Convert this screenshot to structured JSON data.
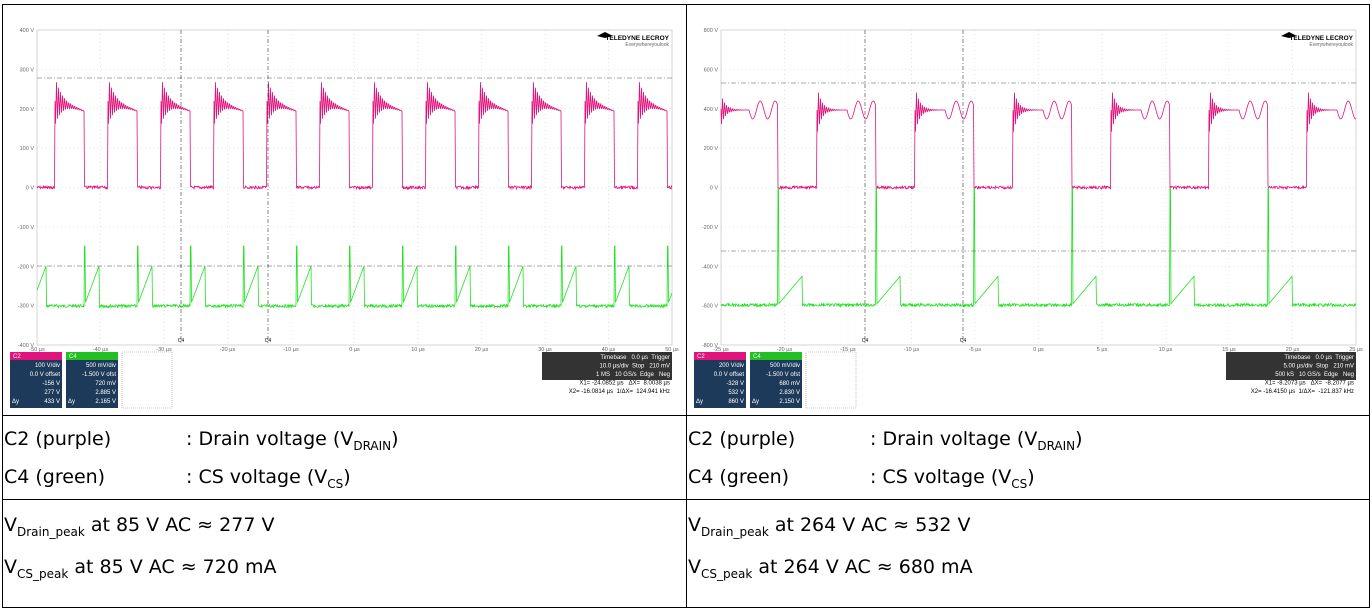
{
  "cells": [
    {
      "scope": {
        "brand": "TELEDYNE LECROY",
        "tagline": "Everywhereyoulook",
        "y_labels": [
          "400 V",
          "300 V",
          "200 V",
          "100 V",
          "0 V",
          "-100 V",
          "-200 V",
          "-300 V",
          "-400 V"
        ],
        "x_labels": [
          "-50 µs",
          "-40 µs",
          "-30 µs",
          "-20 µs",
          "-10 µs",
          "0 µs",
          "10 µs",
          "20 µs",
          "30 µs",
          "40 µs",
          "50 µs"
        ],
        "cursor_label": "C4",
        "ch2": {
          "name": "C2",
          "lines": [
            "100 V/div",
            "0.0 V offset",
            "-156 V",
            "277 V",
            "433 V"
          ]
        },
        "ch4": {
          "name": "C4",
          "lines": [
            "500 mV/div",
            "-1.500 V ofst",
            "720 mV",
            "2.885 V",
            "2.165 V"
          ]
        },
        "dy": "Δy",
        "timebase": [
          "Timebase   0.0 µs  Trigger",
          "10.0 µs/div  Stop   210 mV",
          "1 MS   10 GS/s  Edge   Neg",
          "X1= -24.0852 µs   ΔX=  8.0038 µs",
          "X2= -16.0814 µs  1/ΔX=  124.941 kHz"
        ]
      },
      "legend": [
        {
          "label": "C2 (purple)",
          "desc": ": Drain voltage (V",
          "sub": "DRAIN",
          "end": ")"
        },
        {
          "label": "C4 (green)",
          "desc": ": CS voltage (V",
          "sub": "CS",
          "end": ")"
        }
      ],
      "results": [
        {
          "v": "V",
          "sub": "Drain_peak",
          "text": " at 85 V AC ≈ 277 V"
        },
        {
          "v": "V",
          "sub": "CS_peak",
          "text": " at 85 V AC ≈ 720 mA"
        }
      ]
    },
    {
      "scope": {
        "brand": "TELEDYNE LECROY",
        "tagline": "Everywhereyoulook",
        "y_labels": [
          "800 V",
          "600 V",
          "400 V",
          "200 V",
          "0 V",
          "-200 V",
          "-400 V",
          "-600 V",
          "-800 V"
        ],
        "x_labels": [
          "-25 µs",
          "-20 µs",
          "-15 µs",
          "-10 µs",
          "-5 µs",
          "0 µs",
          "5 µs",
          "10 µs",
          "15 µs",
          "20 µs",
          "25 µs"
        ],
        "cursor_label": "C4",
        "ch2": {
          "name": "C2",
          "lines": [
            "200 V/div",
            "0.0 V offset",
            "-328 V",
            "532 V",
            "860 V"
          ]
        },
        "ch4": {
          "name": "C4",
          "lines": [
            "500 mV/div",
            "-1.500 V ofst",
            "680 mV",
            "2.830 V",
            "2.150 V"
          ]
        },
        "dy": "Δy",
        "timebase": [
          "Timebase   0.0 µs  Trigger",
          "5.00 µs/div  Stop   210 mV",
          "500 kS   10 GS/s  Edge   Neg",
          "X1= -8.2073 µs   ΔX=  -8.2077 µs",
          "X2= -16.4150 µs  1/ΔX=  -121.837 kHz"
        ]
      },
      "legend": [
        {
          "label": "C2 (purple)",
          "desc": ": Drain voltage (V",
          "sub": "DRAIN",
          "end": ")"
        },
        {
          "label": "C4 (green)",
          "desc": ": CS voltage (V",
          "sub": "CS",
          "end": ")"
        }
      ],
      "results": [
        {
          "v": "V",
          "sub": "Drain_peak",
          "text": " at 264 V AC ≈ 532 V"
        },
        {
          "v": "V",
          "sub": "CS_peak",
          "text": " at 264 V AC ≈ 680 mA"
        }
      ]
    }
  ]
}
